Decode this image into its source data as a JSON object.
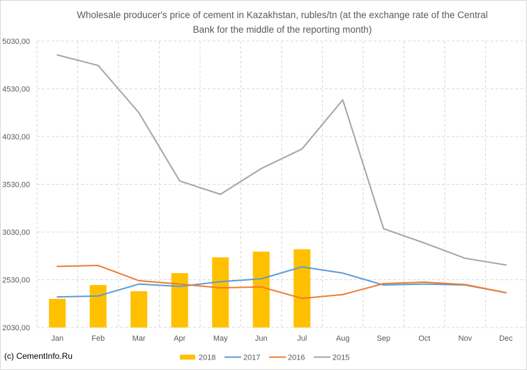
{
  "watermark": "(c) CementInfo.Ru",
  "colors": {
    "background": "#FFFFFF",
    "grid": "#D9D9D9",
    "axis_text": "#595959",
    "frame": "#D9D9D9"
  },
  "chart_data": {
    "type": "line",
    "title": "Wholesale producer's price of cement in Kazakhstan, rubles/tn (at the exchange rate of the Central Bank for the middle of the reporting month)",
    "xlabel": "",
    "ylabel": "",
    "categories": [
      "Jan",
      "Feb",
      "Mar",
      "Apr",
      "May",
      "Jun",
      "Jul",
      "Aug",
      "Sep",
      "Oct",
      "Nov",
      "Dec"
    ],
    "ylim": [
      2030,
      5030
    ],
    "yticks": [
      2030,
      2530,
      3030,
      3530,
      4030,
      4530,
      5030
    ],
    "ytick_labels": [
      "2030,00",
      "2530,00",
      "3030,00",
      "3530,00",
      "4030,00",
      "4530,00",
      "5030,00"
    ],
    "grid": true,
    "legend": "bottom",
    "series": [
      {
        "name": "2018",
        "type": "bar",
        "color": "#FFC000",
        "values": [
          2330,
          2475,
          2410,
          2600,
          2765,
          2825,
          2850,
          null,
          null,
          null,
          null,
          null
        ]
      },
      {
        "name": "2017",
        "type": "line",
        "color": "#5B9BD5",
        "values": [
          2350,
          2360,
          2485,
          2460,
          2510,
          2540,
          2665,
          2600,
          2475,
          2485,
          2475,
          2395
        ]
      },
      {
        "name": "2016",
        "type": "line",
        "color": "#ED7D31",
        "values": [
          2670,
          2680,
          2520,
          2485,
          2445,
          2455,
          2335,
          2375,
          2490,
          2505,
          2480,
          2395
        ]
      },
      {
        "name": "2015",
        "type": "line",
        "color": "#A5A5A5",
        "values": [
          4885,
          4775,
          4280,
          3565,
          3425,
          3695,
          3900,
          4415,
          3065,
          2915,
          2755,
          2685
        ]
      }
    ]
  }
}
